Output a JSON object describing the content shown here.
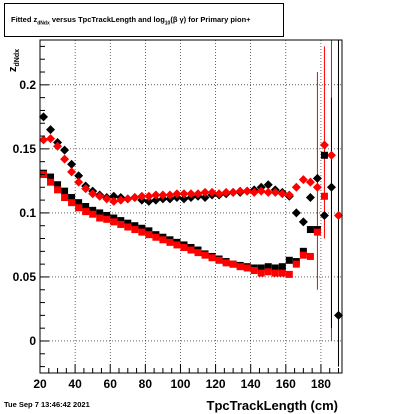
{
  "title": {
    "prefix": "Fitted  z",
    "sub1": "dNdx",
    "mid": "  versus TpcTrackLength and log",
    "sub2": "10",
    "suffix": "(β γ) for Primary pion+"
  },
  "timestamp": "Tue Sep  7 13:46:42 2021",
  "chart_data": {
    "type": "scatter",
    "title": "Fitted z_dNdx versus TpcTrackLength and log10(β γ) for Primary pion+",
    "xlabel": "TpcTrackLength (cm)",
    "ylabel": "z_dNdx",
    "xlim": [
      20,
      192
    ],
    "ylim": [
      -0.025,
      0.235
    ],
    "xticks": [
      20,
      40,
      60,
      80,
      100,
      120,
      140,
      160,
      180
    ],
    "xtick_labels": [
      "20",
      "40",
      "60",
      "80",
      "100",
      "120",
      "140",
      "160",
      "180"
    ],
    "yticks": [
      0,
      0.05,
      0.1,
      0.15,
      0.2
    ],
    "ytick_labels": [
      "0",
      "0.05",
      "0.1",
      "0.15",
      "0.2"
    ],
    "grid": true,
    "colors": {
      "black": "#000000",
      "red": "#ff0000"
    },
    "series": [
      {
        "color": "#000000",
        "marker": "diamond",
        "points": [
          [
            22,
            0.175
          ],
          [
            26,
            0.165
          ],
          [
            30,
            0.155
          ],
          [
            34,
            0.149
          ],
          [
            38,
            0.138
          ],
          [
            42,
            0.129
          ],
          [
            46,
            0.121
          ],
          [
            50,
            0.117
          ],
          [
            54,
            0.114
          ],
          [
            58,
            0.112
          ],
          [
            62,
            0.113
          ],
          [
            66,
            0.112
          ],
          [
            70,
            0.111
          ],
          [
            74,
            0.112
          ],
          [
            78,
            0.11
          ],
          [
            82,
            0.109
          ],
          [
            86,
            0.11
          ],
          [
            90,
            0.111
          ],
          [
            94,
            0.111
          ],
          [
            98,
            0.112
          ],
          [
            102,
            0.111
          ],
          [
            106,
            0.112
          ],
          [
            110,
            0.113
          ],
          [
            114,
            0.112
          ],
          [
            118,
            0.114
          ],
          [
            122,
            0.114
          ],
          [
            126,
            0.115
          ],
          [
            130,
            0.116
          ],
          [
            134,
            0.116
          ],
          [
            138,
            0.117
          ],
          [
            142,
            0.118
          ],
          [
            146,
            0.12
          ],
          [
            150,
            0.122
          ],
          [
            154,
            0.118
          ],
          [
            158,
            0.116
          ],
          [
            162,
            0.113
          ],
          [
            166,
            0.1
          ],
          [
            170,
            0.093
          ],
          [
            174,
            0.112
          ],
          [
            178,
            0.127
          ],
          [
            182,
            0.098
          ],
          [
            186,
            0.12
          ],
          [
            190,
            0.02
          ]
        ]
      },
      {
        "color": "#ff0000",
        "marker": "diamond",
        "points": [
          [
            22,
            0.157
          ],
          [
            26,
            0.158
          ],
          [
            30,
            0.152
          ],
          [
            34,
            0.142
          ],
          [
            38,
            0.132
          ],
          [
            42,
            0.124
          ],
          [
            46,
            0.119
          ],
          [
            50,
            0.115
          ],
          [
            54,
            0.113
          ],
          [
            58,
            0.111
          ],
          [
            62,
            0.109
          ],
          [
            66,
            0.11
          ],
          [
            70,
            0.111
          ],
          [
            74,
            0.112
          ],
          [
            78,
            0.113
          ],
          [
            82,
            0.113
          ],
          [
            86,
            0.114
          ],
          [
            90,
            0.114
          ],
          [
            94,
            0.114
          ],
          [
            98,
            0.115
          ],
          [
            102,
            0.115
          ],
          [
            106,
            0.115
          ],
          [
            110,
            0.115
          ],
          [
            114,
            0.116
          ],
          [
            118,
            0.116
          ],
          [
            122,
            0.115
          ],
          [
            126,
            0.116
          ],
          [
            130,
            0.116
          ],
          [
            134,
            0.117
          ],
          [
            138,
            0.117
          ],
          [
            142,
            0.116
          ],
          [
            146,
            0.117
          ],
          [
            150,
            0.116
          ],
          [
            154,
            0.116
          ],
          [
            158,
            0.115
          ],
          [
            162,
            0.114
          ],
          [
            166,
            0.12
          ],
          [
            170,
            0.126
          ],
          [
            174,
            0.124
          ],
          [
            178,
            0.12
          ],
          [
            182,
            0.153
          ],
          [
            186,
            0.145
          ],
          [
            190,
            0.098
          ]
        ]
      },
      {
        "color": "#000000",
        "marker": "square",
        "points": [
          [
            22,
            0.131
          ],
          [
            26,
            0.128
          ],
          [
            30,
            0.122
          ],
          [
            34,
            0.117
          ],
          [
            38,
            0.112
          ],
          [
            42,
            0.108
          ],
          [
            46,
            0.105
          ],
          [
            50,
            0.102
          ],
          [
            54,
            0.1
          ],
          [
            58,
            0.098
          ],
          [
            62,
            0.096
          ],
          [
            66,
            0.094
          ],
          [
            70,
            0.092
          ],
          [
            74,
            0.09
          ],
          [
            78,
            0.088
          ],
          [
            82,
            0.086
          ],
          [
            86,
            0.083
          ],
          [
            90,
            0.081
          ],
          [
            94,
            0.079
          ],
          [
            98,
            0.077
          ],
          [
            102,
            0.075
          ],
          [
            106,
            0.073
          ],
          [
            110,
            0.071
          ],
          [
            114,
            0.068
          ],
          [
            118,
            0.066
          ],
          [
            122,
            0.064
          ],
          [
            126,
            0.062
          ],
          [
            130,
            0.06
          ],
          [
            134,
            0.059
          ],
          [
            138,
            0.058
          ],
          [
            142,
            0.057
          ],
          [
            146,
            0.057
          ],
          [
            150,
            0.058
          ],
          [
            154,
            0.057
          ],
          [
            158,
            0.058
          ],
          [
            162,
            0.063
          ],
          [
            166,
            0.062
          ],
          [
            170,
            0.07
          ],
          [
            174,
            0.087
          ],
          [
            178,
            0.087
          ],
          [
            182,
            0.145
          ]
        ]
      },
      {
        "color": "#ff0000",
        "marker": "square",
        "points": [
          [
            22,
            0.13
          ],
          [
            26,
            0.124
          ],
          [
            30,
            0.118
          ],
          [
            34,
            0.112
          ],
          [
            38,
            0.108
          ],
          [
            42,
            0.104
          ],
          [
            46,
            0.101
          ],
          [
            50,
            0.099
          ],
          [
            54,
            0.096
          ],
          [
            58,
            0.095
          ],
          [
            62,
            0.093
          ],
          [
            66,
            0.091
          ],
          [
            70,
            0.089
          ],
          [
            74,
            0.087
          ],
          [
            78,
            0.085
          ],
          [
            82,
            0.083
          ],
          [
            86,
            0.081
          ],
          [
            90,
            0.079
          ],
          [
            94,
            0.077
          ],
          [
            98,
            0.075
          ],
          [
            102,
            0.073
          ],
          [
            106,
            0.071
          ],
          [
            110,
            0.069
          ],
          [
            114,
            0.067
          ],
          [
            118,
            0.065
          ],
          [
            122,
            0.063
          ],
          [
            126,
            0.061
          ],
          [
            130,
            0.06
          ],
          [
            134,
            0.058
          ],
          [
            138,
            0.057
          ],
          [
            142,
            0.055
          ],
          [
            146,
            0.053
          ],
          [
            150,
            0.054
          ],
          [
            154,
            0.053
          ],
          [
            158,
            0.053
          ],
          [
            162,
            0.052
          ],
          [
            166,
            0.06
          ],
          [
            170,
            0.067
          ],
          [
            174,
            0.066
          ],
          [
            178,
            0.085
          ],
          [
            182,
            0.113
          ]
        ]
      }
    ],
    "error_bars": [
      {
        "x": 178,
        "y": 0.15,
        "low": 0.04,
        "high": 0.21,
        "color": "#ff0000"
      },
      {
        "x": 182,
        "y": 0.148,
        "low": 0.08,
        "high": 0.23,
        "color": "#ff0000"
      },
      {
        "x": 186,
        "y": 0.12,
        "low": 0.0,
        "high": 0.235,
        "color": "#ff0000"
      },
      {
        "x": 190,
        "y": 0.1,
        "low": 0.0,
        "high": 0.235,
        "color": "#ff0000"
      },
      {
        "x": 186,
        "y": 0.11,
        "low": 0.01,
        "high": 0.19,
        "color": "#000000"
      },
      {
        "x": 190,
        "y": 0.02,
        "low": -0.02,
        "high": 0.235,
        "color": "#000000"
      }
    ]
  }
}
